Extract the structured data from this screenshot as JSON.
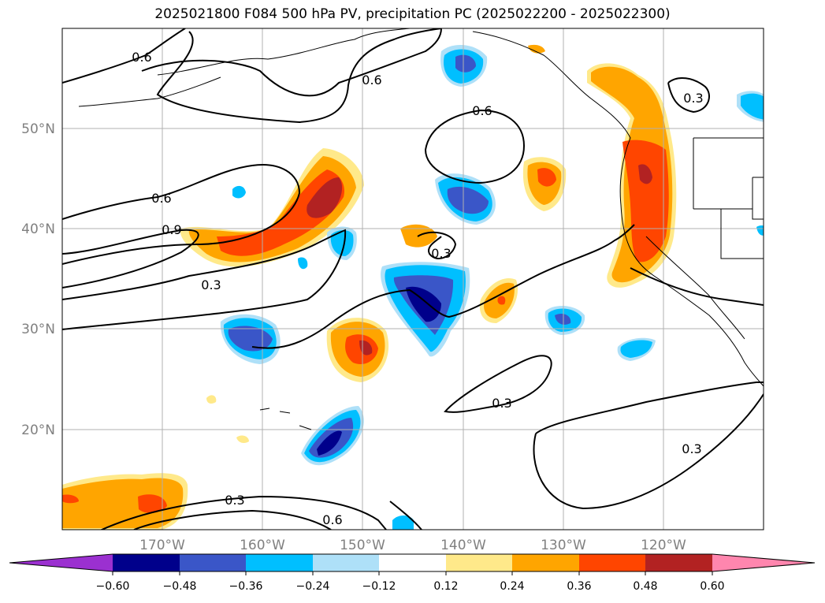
{
  "title": "2025021800 F084 500 hPa PV, precipitation PC (2025022200 - 2025022300)",
  "lat_labels": [
    "50°N",
    "40°N",
    "30°N",
    "20°N"
  ],
  "lon_labels": [
    "170°W",
    "160°W",
    "150°W",
    "140°W",
    "130°W",
    "120°W"
  ],
  "colorbar": {
    "ticks": [
      "−0.60",
      "−0.48",
      "−0.36",
      "−0.24",
      "−0.12",
      "0.12",
      "0.24",
      "0.36",
      "0.48",
      "0.60"
    ],
    "colors": [
      "#9b30d0",
      "#00008b",
      "#3a56c8",
      "#00bfff",
      "#aee0f8",
      "#ffffff",
      "#ffe98a",
      "#ffa500",
      "#ff4500",
      "#b22222",
      "#ff86ae"
    ]
  },
  "contour_labels": [
    "0.6",
    "0.6",
    "0.6",
    "0.6",
    "0.9",
    "0.3",
    "0.3",
    "0.3",
    "0.3",
    "0.3",
    "0.3",
    "0.6"
  ]
}
